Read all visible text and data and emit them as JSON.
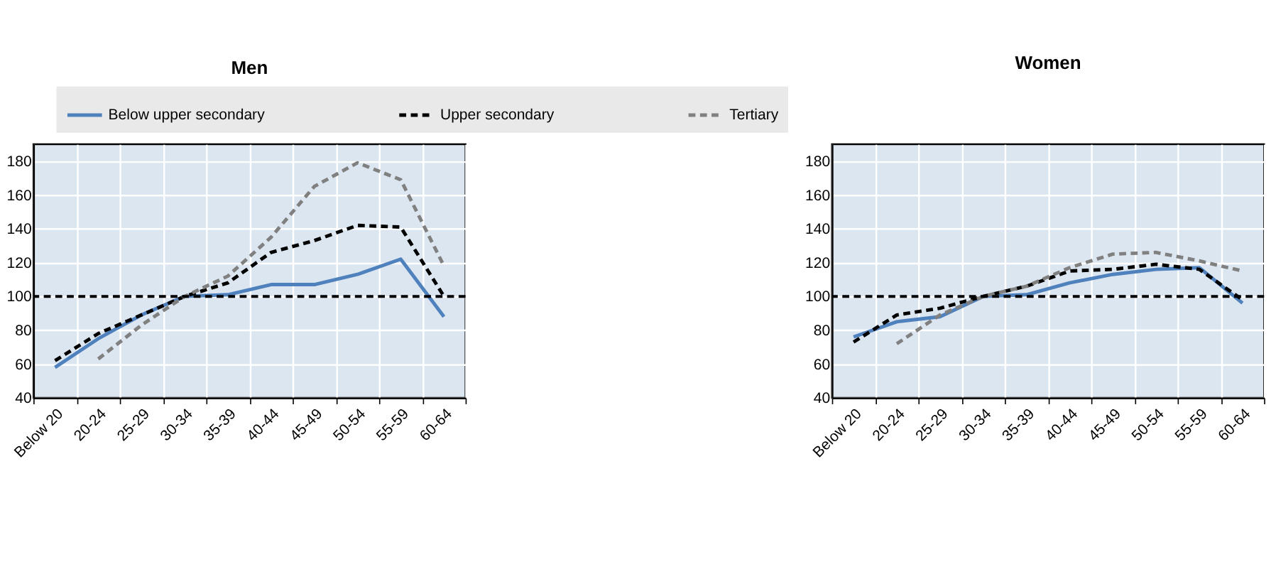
{
  "chart_data": [
    {
      "type": "line",
      "title": "Men",
      "categories": [
        "Below 20",
        "20-24",
        "25-29",
        "30-34",
        "35-39",
        "40-44",
        "45-49",
        "50-54",
        "55-59",
        "60-64"
      ],
      "ylim": [
        40,
        190
      ],
      "yticks": [
        40,
        60,
        80,
        100,
        120,
        140,
        160,
        180
      ],
      "grid": true,
      "legend": "top",
      "marker": "none",
      "series": [
        {
          "name": "Below upper secondary",
          "color": "#4f81bd",
          "line_style": "solid",
          "values": [
            58,
            75,
            89,
            100,
            101,
            107,
            107,
            113,
            122,
            88
          ]
        },
        {
          "name": "Upper secondary",
          "color": "#000000",
          "line_style": "dashed",
          "values": [
            62,
            78,
            89,
            100,
            108,
            126,
            133,
            142,
            141,
            100
          ]
        },
        {
          "name": "Tertiary",
          "color": "#808080",
          "line_style": "dashed",
          "values": [
            null,
            63,
            83,
            100,
            112,
            135,
            165,
            179,
            169,
            118
          ]
        }
      ],
      "ref_lines": [
        {
          "axis": "y",
          "value": 100,
          "color": "#000000",
          "line_style": "dashed"
        }
      ]
    },
    {
      "type": "line",
      "title": "Women",
      "categories": [
        "Below 20",
        "20-24",
        "25-29",
        "30-34",
        "35-39",
        "40-44",
        "45-49",
        "50-54",
        "55-59",
        "60-64"
      ],
      "ylim": [
        40,
        190
      ],
      "yticks": [
        40,
        60,
        80,
        100,
        120,
        140,
        160,
        180
      ],
      "grid": true,
      "marker": "none",
      "series": [
        {
          "color": "#4f81bd",
          "line_style": "solid",
          "values": [
            76,
            85,
            88,
            100,
            101,
            108,
            113,
            116,
            117,
            96
          ]
        },
        {
          "color": "#000000",
          "line_style": "dashed",
          "values": [
            73,
            89,
            93,
            100,
            106,
            115,
            116,
            119,
            116,
            98
          ]
        },
        {
          "color": "#808080",
          "line_style": "dashed",
          "values": [
            null,
            72,
            89,
            100,
            106,
            117,
            125,
            126,
            121,
            115
          ]
        }
      ],
      "ref_lines": [
        {
          "axis": "y",
          "value": 100,
          "color": "#000000",
          "line_style": "dashed"
        }
      ]
    }
  ]
}
